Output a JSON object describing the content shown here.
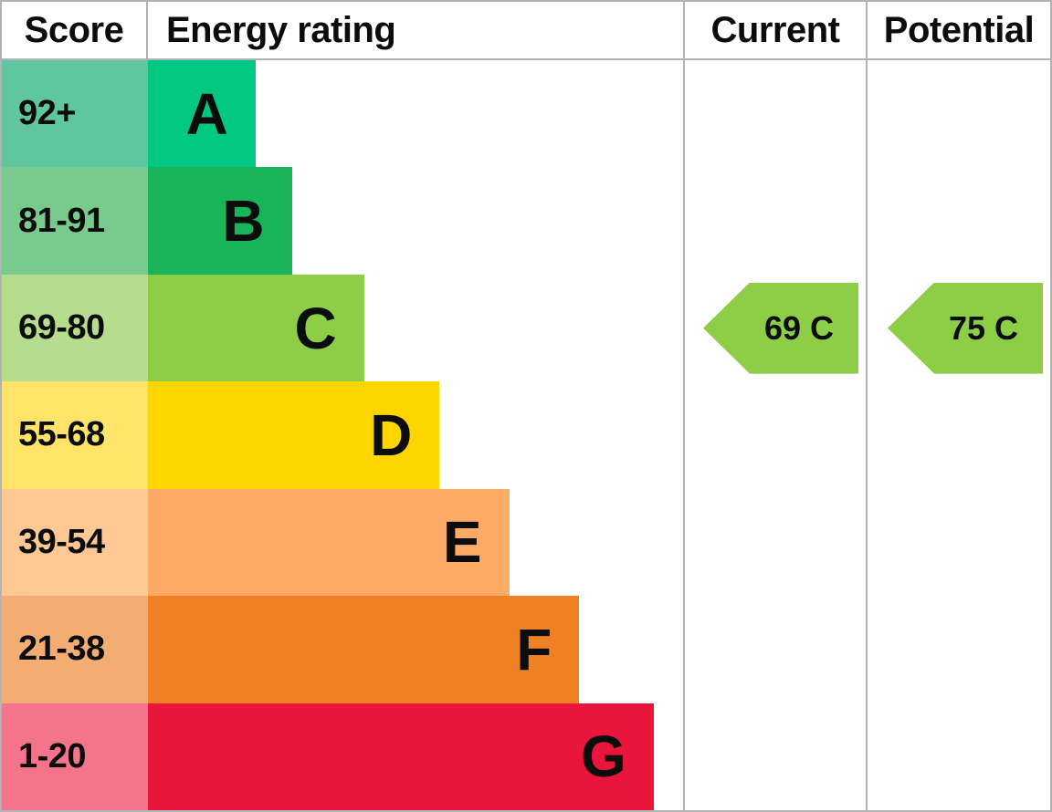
{
  "table": {
    "headers": {
      "score": "Score",
      "rating": "Energy rating",
      "current": "Current",
      "potential": "Potential"
    },
    "bands": [
      {
        "score": "92+",
        "letter": "A",
        "band_color": "#00c781",
        "score_color": "#5fc6a0",
        "bar_width_pct": 20.1
      },
      {
        "score": "81-91",
        "letter": "B",
        "band_color": "#19b459",
        "score_color": "#7bca8d",
        "bar_width_pct": 26.9
      },
      {
        "score": "69-80",
        "letter": "C",
        "band_color": "#8dce46",
        "score_color": "#b6dd8d",
        "bar_width_pct": 40.4
      },
      {
        "score": "55-68",
        "letter": "D",
        "band_color": "#ffd500",
        "score_color": "#ffe469",
        "bar_width_pct": 54.5
      },
      {
        "score": "39-54",
        "letter": "E",
        "band_color": "#fcaa65",
        "score_color": "#fec895",
        "bar_width_pct": 67.5
      },
      {
        "score": "21-38",
        "letter": "F",
        "band_color": "#ef8023",
        "score_color": "#f3ac72",
        "bar_width_pct": 80.6
      },
      {
        "score": "1-20",
        "letter": "G",
        "band_color": "#e9153b",
        "score_color": "#f4758b",
        "bar_width_pct": 94.5
      }
    ],
    "current": {
      "label": "69 C",
      "value": 69,
      "band": "C",
      "color": "#8dce46",
      "row_index": 2
    },
    "potential": {
      "label": "75 C",
      "value": 75,
      "band": "C",
      "color": "#8dce46",
      "row_index": 2
    },
    "grid_color": "#b1b4b6"
  },
  "chart_data": {
    "type": "bar",
    "title": "Energy rating",
    "categories": [
      "A",
      "B",
      "C",
      "D",
      "E",
      "F",
      "G"
    ],
    "score_ranges": [
      "92+",
      "81-91",
      "69-80",
      "55-68",
      "39-54",
      "21-38",
      "1-20"
    ],
    "bar_width_pct": [
      20.1,
      26.9,
      40.4,
      54.5,
      67.5,
      80.6,
      94.5
    ],
    "band_colors": [
      "#00c781",
      "#19b459",
      "#8dce46",
      "#ffd500",
      "#fcaa65",
      "#ef8023",
      "#e9153b"
    ],
    "score_cell_colors": [
      "#5fc6a0",
      "#7bca8d",
      "#b6dd8d",
      "#ffe469",
      "#fec895",
      "#f3ac72",
      "#f4758b"
    ],
    "markers": [
      {
        "name": "Current",
        "label": "69 C",
        "value": 69,
        "band": "C"
      },
      {
        "name": "Potential",
        "label": "75 C",
        "value": 75,
        "band": "C"
      }
    ],
    "xlabel": "",
    "ylabel": "",
    "grid": false,
    "legend_position": "none"
  }
}
